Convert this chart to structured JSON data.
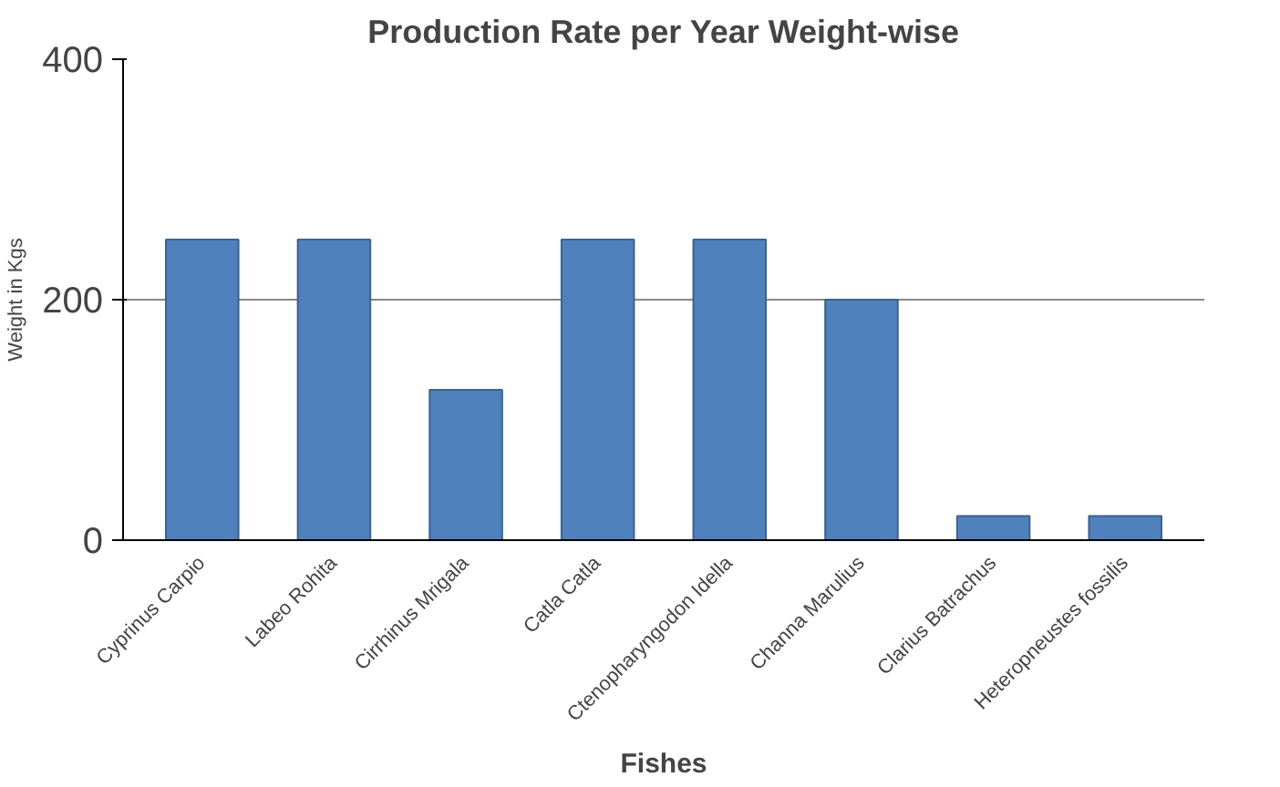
{
  "chart_data": {
    "type": "bar",
    "title": "Production Rate per Year Weight-wise",
    "xlabel": "Fishes",
    "ylabel": "Weight in Kgs",
    "categories": [
      "Cyprinus Carpio",
      "Labeo Rohita",
      "Cirrhinus Mrigala",
      "Catla Catla",
      "Ctenopharyngodon Idella",
      "Channa Marulius",
      "Clarius Batrachus",
      "Heteropneustes fossilis"
    ],
    "values": [
      250,
      250,
      125,
      250,
      250,
      200,
      20,
      20
    ],
    "color": "#4f81bd",
    "ylim": [
      0,
      400
    ],
    "yticks": [
      0,
      200,
      400
    ],
    "grid": "y"
  }
}
